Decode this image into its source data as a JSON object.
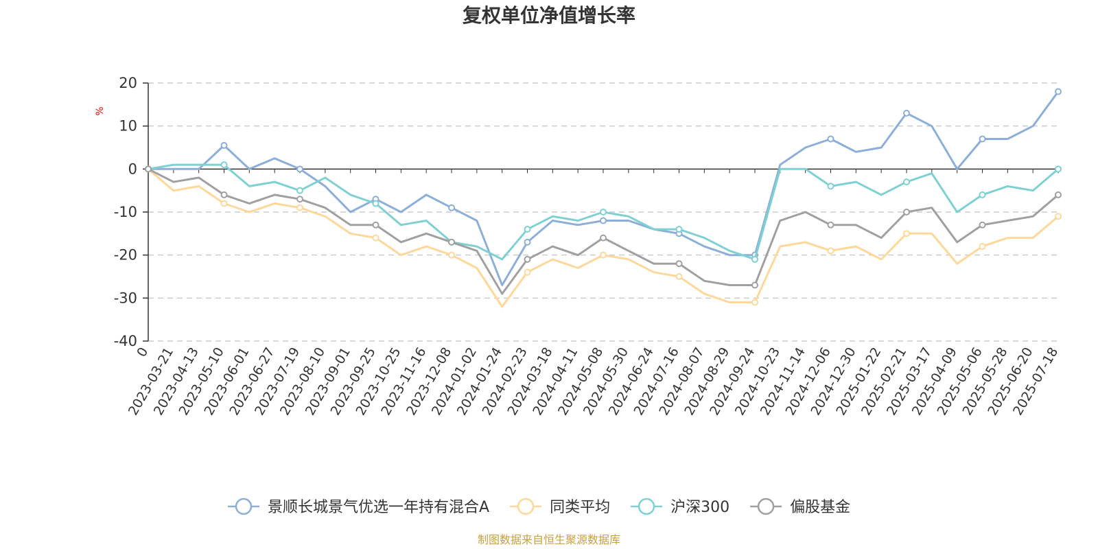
{
  "chart_data": {
    "type": "line",
    "title": "复权单位净值增长率",
    "y_unit": "%",
    "ylim": [
      -40,
      20
    ],
    "yticks": [
      20,
      10,
      0,
      -10,
      -20,
      -30,
      -40
    ],
    "grid": true,
    "legend_position": "bottom",
    "x_labels": [
      "0",
      "2023-03-21",
      "2023-04-13",
      "2023-05-10",
      "2023-06-01",
      "2023-06-27",
      "2023-07-19",
      "2023-08-10",
      "2023-09-01",
      "2023-09-25",
      "2023-10-25",
      "2023-11-16",
      "2023-12-08",
      "2024-01-02",
      "2024-01-24",
      "2024-02-23",
      "2024-03-18",
      "2024-04-11",
      "2024-05-08",
      "2024-05-30",
      "2024-06-24",
      "2024-07-16",
      "2024-08-07",
      "2024-08-29",
      "2024-09-24",
      "2024-10-23",
      "2024-11-14",
      "2024-12-06",
      "2024-12-30",
      "2025-01-22",
      "2025-02-21",
      "2025-03-17",
      "2025-04-09",
      "2025-05-06",
      "2025-05-28",
      "2025-06-20",
      "2025-07-18"
    ],
    "series": [
      {
        "name": "景顺长城景气优选一年持有混合A",
        "color": "#8caed8",
        "values": [
          0,
          0,
          0,
          5.5,
          0,
          2.5,
          0,
          -4,
          -10,
          -7,
          -10,
          -6,
          -9,
          -12,
          -27,
          -17,
          -12,
          -13,
          -12,
          -12,
          -14,
          -15,
          -18,
          -20,
          -20,
          1,
          5,
          7,
          4,
          5,
          13,
          10,
          0,
          7,
          7,
          10,
          18
        ]
      },
      {
        "name": "同类平均",
        "color": "#fdd89a",
        "values": [
          0,
          -5,
          -4,
          -8,
          -10,
          -8,
          -9,
          -11,
          -15,
          -16,
          -20,
          -18,
          -20,
          -23,
          -32,
          -24,
          -21,
          -23,
          -20,
          -21,
          -24,
          -25,
          -29,
          -31,
          -31,
          -18,
          -17,
          -19,
          -18,
          -21,
          -15,
          -15,
          -22,
          -18,
          -16,
          -16,
          -11
        ]
      },
      {
        "name": "沪深300",
        "color": "#7fd0d2",
        "values": [
          0,
          1,
          1,
          1,
          -4,
          -3,
          -5,
          -2,
          -6,
          -8,
          -13,
          -12,
          -17,
          -18,
          -21,
          -14,
          -11,
          -12,
          -10,
          -11,
          -14,
          -14,
          -16,
          -19,
          -21,
          0,
          0,
          -4,
          -3,
          -6,
          -3,
          -1,
          -10,
          -6,
          -4,
          -5,
          0
        ]
      },
      {
        "name": "偏股基金",
        "color": "#a0a0a0",
        "values": [
          0,
          -3,
          -2,
          -6,
          -8,
          -6,
          -7,
          -9,
          -13,
          -13,
          -17,
          -15,
          -17,
          -19,
          -29,
          -21,
          -18,
          -20,
          -16,
          -19,
          -22,
          -22,
          -26,
          -27,
          -27,
          -12,
          -10,
          -13,
          -13,
          -16,
          -10,
          -9,
          -17,
          -13,
          -12,
          -11,
          -6
        ]
      }
    ]
  },
  "footer": {
    "source": "制图数据来自恒生聚源数据库"
  }
}
